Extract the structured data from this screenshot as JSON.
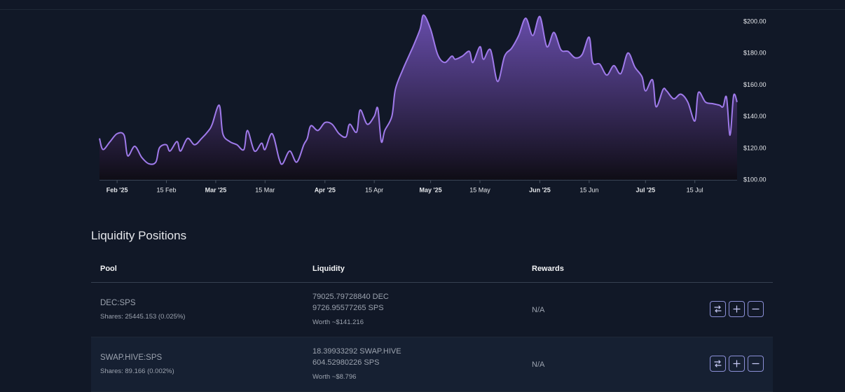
{
  "chart_data": {
    "type": "area",
    "x_labels": [
      "Feb '25",
      "15 Feb",
      "Mar '25",
      "15 Mar",
      "Apr '25",
      "15 Apr",
      "May '25",
      "15 May",
      "Jun '25",
      "15 Jun",
      "Jul '25",
      "15 Jul"
    ],
    "bold_x_labels": [
      "Feb '25",
      "Mar '25",
      "Apr '25",
      "May '25",
      "Jun '25",
      "Jul '25"
    ],
    "y_ticks": [
      "$200.00",
      "$180.00",
      "$160.00",
      "$140.00",
      "$120.00",
      "$100.00"
    ],
    "ylim": [
      100,
      200
    ],
    "x_range": [
      "2025-01-27",
      "2025-07-27"
    ],
    "series": [
      {
        "values": [
          [
            "2025-01-27",
            126
          ],
          [
            "2025-01-28",
            119
          ],
          [
            "2025-01-30",
            124
          ],
          [
            "2025-02-01",
            129
          ],
          [
            "2025-02-03",
            128
          ],
          [
            "2025-02-04",
            115
          ],
          [
            "2025-02-06",
            121
          ],
          [
            "2025-02-08",
            114
          ],
          [
            "2025-02-10",
            110
          ],
          [
            "2025-02-12",
            111
          ],
          [
            "2025-02-13",
            120
          ],
          [
            "2025-02-15",
            122
          ],
          [
            "2025-02-16",
            118
          ],
          [
            "2025-02-18",
            124
          ],
          [
            "2025-02-19",
            118
          ],
          [
            "2025-02-21",
            126
          ],
          [
            "2025-02-23",
            122
          ],
          [
            "2025-02-25",
            126
          ],
          [
            "2025-02-27",
            131
          ],
          [
            "2025-02-28",
            135
          ],
          [
            "2025-03-02",
            147
          ],
          [
            "2025-03-03",
            129
          ],
          [
            "2025-03-05",
            124
          ],
          [
            "2025-03-07",
            122
          ],
          [
            "2025-03-09",
            119
          ],
          [
            "2025-03-10",
            131
          ],
          [
            "2025-03-12",
            118
          ],
          [
            "2025-03-14",
            123
          ],
          [
            "2025-03-15",
            119
          ],
          [
            "2025-03-17",
            129
          ],
          [
            "2025-03-19",
            113
          ],
          [
            "2025-03-20",
            110
          ],
          [
            "2025-03-22",
            118
          ],
          [
            "2025-03-24",
            111
          ],
          [
            "2025-03-26",
            122
          ],
          [
            "2025-03-27",
            126
          ],
          [
            "2025-03-28",
            134
          ],
          [
            "2025-03-30",
            131
          ],
          [
            "2025-04-01",
            136
          ],
          [
            "2025-04-03",
            135
          ],
          [
            "2025-04-05",
            129
          ],
          [
            "2025-04-07",
            127
          ],
          [
            "2025-04-08",
            135
          ],
          [
            "2025-04-10",
            130
          ],
          [
            "2025-04-11",
            144
          ],
          [
            "2025-04-13",
            135
          ],
          [
            "2025-04-15",
            140
          ],
          [
            "2025-04-16",
            145
          ],
          [
            "2025-04-17",
            124
          ],
          [
            "2025-04-18",
            131
          ],
          [
            "2025-04-20",
            140
          ],
          [
            "2025-04-21",
            157
          ],
          [
            "2025-04-23",
            169
          ],
          [
            "2025-04-25",
            179
          ],
          [
            "2025-04-26",
            184
          ],
          [
            "2025-04-28",
            195
          ],
          [
            "2025-04-29",
            204
          ],
          [
            "2025-05-01",
            195
          ],
          [
            "2025-05-03",
            179
          ],
          [
            "2025-05-05",
            174
          ],
          [
            "2025-05-07",
            178
          ],
          [
            "2025-05-08",
            176
          ],
          [
            "2025-05-10",
            178
          ],
          [
            "2025-05-12",
            181
          ],
          [
            "2025-05-13",
            174
          ],
          [
            "2025-05-15",
            184
          ],
          [
            "2025-05-16",
            176
          ],
          [
            "2025-05-18",
            182
          ],
          [
            "2025-05-20",
            162
          ],
          [
            "2025-05-22",
            178
          ],
          [
            "2025-05-24",
            183
          ],
          [
            "2025-05-26",
            191
          ],
          [
            "2025-05-28",
            202
          ],
          [
            "2025-05-30",
            191
          ],
          [
            "2025-06-01",
            203
          ],
          [
            "2025-06-03",
            184
          ],
          [
            "2025-06-05",
            193
          ],
          [
            "2025-06-07",
            182
          ],
          [
            "2025-06-09",
            181
          ],
          [
            "2025-06-11",
            177
          ],
          [
            "2025-06-13",
            179
          ],
          [
            "2025-06-15",
            190
          ],
          [
            "2025-06-16",
            174
          ],
          [
            "2025-06-18",
            173
          ],
          [
            "2025-06-20",
            166
          ],
          [
            "2025-06-22",
            172
          ],
          [
            "2025-06-24",
            167
          ],
          [
            "2025-06-26",
            180
          ],
          [
            "2025-06-28",
            171
          ],
          [
            "2025-06-30",
            165
          ],
          [
            "2025-07-01",
            156
          ],
          [
            "2025-07-03",
            163
          ],
          [
            "2025-07-04",
            146
          ],
          [
            "2025-07-06",
            157
          ],
          [
            "2025-07-07",
            156
          ],
          [
            "2025-07-09",
            151
          ],
          [
            "2025-07-11",
            154
          ],
          [
            "2025-07-13",
            149
          ],
          [
            "2025-07-15",
            137
          ],
          [
            "2025-07-16",
            155
          ],
          [
            "2025-07-18",
            149
          ],
          [
            "2025-07-20",
            148
          ],
          [
            "2025-07-22",
            147
          ],
          [
            "2025-07-23",
            146
          ],
          [
            "2025-07-24",
            152
          ],
          [
            "2025-07-25",
            128
          ],
          [
            "2025-07-26",
            153
          ],
          [
            "2025-07-27",
            149
          ]
        ]
      }
    ],
    "colors": {
      "line": "#9f7aea",
      "fill_top": "#6b4fb0",
      "fill_bottom": "#0f0d16"
    },
    "grid": false
  },
  "liquidity": {
    "title": "Liquidity Positions",
    "columns": [
      "Pool",
      "Liquidity",
      "Rewards"
    ],
    "rows": [
      {
        "pool": "DEC:SPS",
        "shares": "Shares: 25445.153 (0.025%)",
        "liq_a": "79025.79728840 DEC",
        "liq_b": "9726.95577265 SPS",
        "worth": "Worth ~$141.216",
        "rewards": "N/A"
      },
      {
        "pool": "SWAP.HIVE:SPS",
        "shares": "Shares: 89.166 (0.002%)",
        "liq_a": "18.39933292 SWAP.HIVE",
        "liq_b": "604.52980226 SPS",
        "worth": "Worth ~$8.796",
        "rewards": "N/A"
      }
    ],
    "actions": [
      "swap-icon",
      "plus-icon",
      "minus-icon"
    ],
    "accent": "#8b8fd6"
  }
}
